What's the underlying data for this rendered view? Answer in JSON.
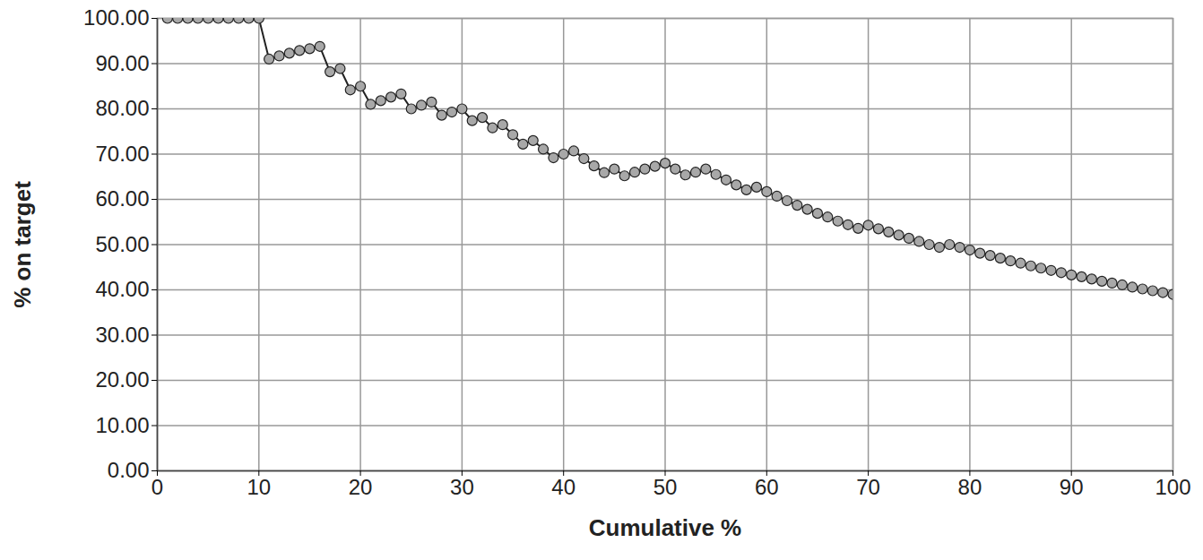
{
  "chart_data": {
    "type": "line",
    "x_label": "Cumulative %",
    "y_label": "% on target",
    "x": [
      1,
      2,
      3,
      4,
      5,
      6,
      7,
      8,
      9,
      10,
      11,
      12,
      13,
      14,
      15,
      16,
      17,
      18,
      19,
      20,
      21,
      22,
      23,
      24,
      25,
      26,
      27,
      28,
      29,
      30,
      31,
      32,
      33,
      34,
      35,
      36,
      37,
      38,
      39,
      40,
      41,
      42,
      43,
      44,
      45,
      46,
      47,
      48,
      49,
      50,
      51,
      52,
      53,
      54,
      55,
      56,
      57,
      58,
      59,
      60,
      61,
      62,
      63,
      64,
      65,
      66,
      67,
      68,
      69,
      70,
      71,
      72,
      73,
      74,
      75,
      76,
      77,
      78,
      79,
      80,
      81,
      82,
      83,
      84,
      85,
      86,
      87,
      88,
      89,
      90,
      91,
      92,
      93,
      94,
      95,
      96,
      97,
      98,
      99,
      100
    ],
    "values": [
      100,
      100,
      100,
      100,
      100,
      100,
      100,
      100,
      100,
      100,
      91,
      91.7,
      92.3,
      92.9,
      93.3,
      93.8,
      88.2,
      88.9,
      84.2,
      85,
      81,
      81.8,
      82.6,
      83.3,
      80,
      80.8,
      81.5,
      78.6,
      79.3,
      80,
      77.4,
      78.1,
      75.8,
      76.5,
      74.3,
      72.2,
      73,
      71.1,
      69.2,
      70,
      70.7,
      69,
      67.4,
      65.9,
      66.7,
      65.2,
      66,
      66.7,
      67.3,
      68,
      66.7,
      65.4,
      66,
      66.7,
      65.5,
      64.3,
      63.2,
      62.1,
      62.7,
      61.7,
      60.7,
      59.7,
      58.7,
      57.8,
      56.9,
      56.1,
      55.2,
      54.4,
      53.6,
      54.3,
      53.5,
      52.8,
      52.1,
      51.4,
      50.7,
      50,
      49.4,
      50,
      49.4,
      48.8,
      48.1,
      47.6,
      47,
      46.4,
      45.9,
      45.3,
      44.8,
      44.3,
      43.8,
      43.3,
      42.9,
      42.4,
      41.9,
      41.5,
      41.1,
      40.6,
      40.2,
      39.8,
      39.4,
      39
    ],
    "color": "#222222",
    "marker": "circle",
    "xlim": [
      0,
      100
    ],
    "xticks": [
      0,
      10,
      20,
      30,
      40,
      50,
      60,
      70,
      80,
      90,
      100
    ],
    "ylim": [
      0,
      100
    ],
    "yticks": [
      {
        "value": 0,
        "label": "0.00"
      },
      {
        "value": 10,
        "label": "10.00"
      },
      {
        "value": 20,
        "label": "20.00"
      },
      {
        "value": 30,
        "label": "30.00"
      },
      {
        "value": 40,
        "label": "40.00"
      },
      {
        "value": 50,
        "label": "50.00"
      },
      {
        "value": 60,
        "label": "60.00"
      },
      {
        "value": 70,
        "label": "70.00"
      },
      {
        "value": 80,
        "label": "80.00"
      },
      {
        "value": 90,
        "label": "90.00"
      },
      {
        "value": 100,
        "label": "100.00"
      }
    ],
    "grid": true
  }
}
